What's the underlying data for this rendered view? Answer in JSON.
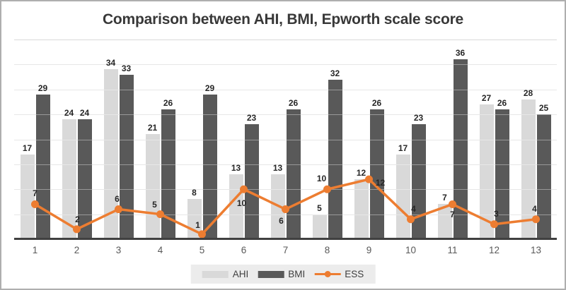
{
  "title": "Comparison between AHI, BMI, Epworth scale score",
  "chart_data": {
    "type": "combo",
    "title": "Comparison between AHI, BMI, Epworth scale score",
    "categories": [
      "1",
      "2",
      "3",
      "4",
      "5",
      "6",
      "7",
      "8",
      "9",
      "10",
      "11",
      "12",
      "13"
    ],
    "series": [
      {
        "name": "AHI",
        "type": "bar",
        "color": "#d9d9d9",
        "values": [
          17,
          24,
          34,
          21,
          8,
          13,
          13,
          5,
          12,
          17,
          7,
          27,
          28
        ]
      },
      {
        "name": "BMI",
        "type": "bar",
        "color": "#595959",
        "values": [
          29,
          24,
          33,
          26,
          29,
          23,
          26,
          32,
          26,
          23,
          36,
          26,
          25
        ]
      },
      {
        "name": "ESS",
        "type": "line",
        "color": "#ed7d31",
        "values": [
          7,
          2,
          6,
          5,
          1,
          10,
          6,
          10,
          12,
          4,
          7,
          3,
          4
        ]
      }
    ],
    "ylim": [
      0,
      40
    ],
    "grid": true,
    "grid_interval": 5,
    "y_axis_labels_visible": false,
    "data_labels": true,
    "legend_position": "bottom",
    "xlabel": "",
    "ylabel": ""
  },
  "colors": {
    "background": "#ffffff",
    "frame_border": "#aeaeae",
    "gridline": "#d9d9d9",
    "axis_line": "#404040",
    "title_text": "#383838",
    "data_label_text": "#262626",
    "tick_text": "#595959",
    "legend_bg": "#ececec",
    "ahi_bar": "#d9d9d9",
    "bmi_bar": "#595959",
    "ess_line": "#ed7d31"
  }
}
